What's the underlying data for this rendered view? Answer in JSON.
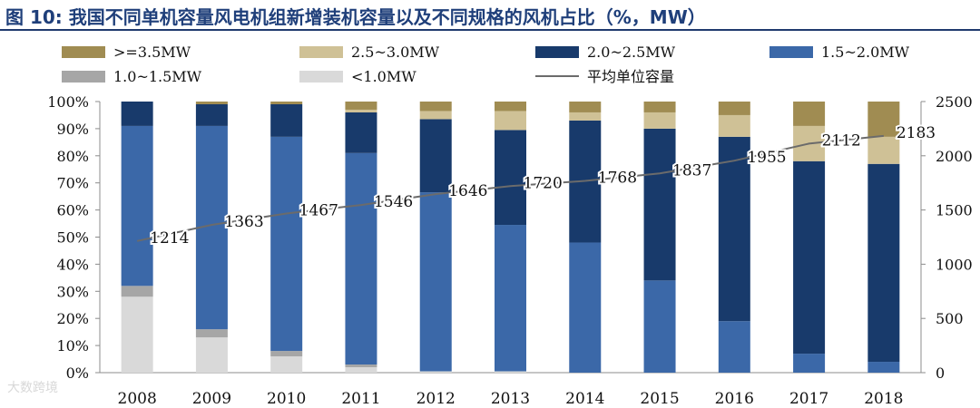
{
  "header": {
    "title": "图 10: 我国不同单机容量风电机组新增装机容量以及不同规格的风机占比（%，MW）"
  },
  "watermark": "大数跨境",
  "chart_data": {
    "type": "bar",
    "stacked": true,
    "categories": [
      "2008",
      "2009",
      "2010",
      "2011",
      "2012",
      "2013",
      "2014",
      "2015",
      "2016",
      "2017",
      "2018"
    ],
    "y_left": {
      "range": [
        0,
        100
      ],
      "tick_labels": [
        "0%",
        "10%",
        "20%",
        "30%",
        "40%",
        "50%",
        "60%",
        "70%",
        "80%",
        "90%",
        "100%"
      ]
    },
    "y_right": {
      "range": [
        0,
        2500
      ],
      "tick_labels": [
        "0",
        "500",
        "1000",
        "1500",
        "2000",
        "2500"
      ]
    },
    "legend_position": "top",
    "series": [
      {
        "name": "<1.0MW",
        "color": "#d9d9d9",
        "values": [
          28,
          13,
          6,
          2,
          0.5,
          0.5,
          0,
          0,
          0,
          0,
          0
        ]
      },
      {
        "name": "1.0~1.5MW",
        "color": "#a6a6a6",
        "values": [
          4,
          3,
          2,
          1,
          0,
          0,
          0,
          0,
          0,
          0,
          0
        ]
      },
      {
        "name": "1.5~2.0MW",
        "color": "#3b68a8",
        "values": [
          59,
          75,
          79,
          78,
          66,
          54,
          48,
          34,
          19,
          7,
          4
        ]
      },
      {
        "name": "2.0~2.5MW",
        "color": "#183a6b",
        "values": [
          9,
          8,
          12,
          15,
          27,
          35,
          45,
          56,
          68,
          71,
          73
        ]
      },
      {
        "name": "2.5~3.0MW",
        "color": "#cfc196",
        "values": [
          0,
          0,
          0,
          1,
          3,
          7,
          3,
          6,
          8,
          13,
          10
        ]
      },
      {
        "name": ">=3.5MW",
        "color": "#a08c52",
        "values": [
          0,
          1,
          1,
          3,
          3.5,
          3.5,
          4,
          4,
          5,
          9,
          13
        ]
      }
    ],
    "line": {
      "name": "平均单位容量",
      "axis": "right",
      "color": "#6b6b6b",
      "values": [
        1214,
        1363,
        1467,
        1546,
        1646,
        1720,
        1768,
        1837,
        1955,
        2112,
        2183
      ],
      "labels": [
        "1214",
        "1363",
        "1467",
        "1546",
        "1646",
        "1720",
        "1768",
        "1837",
        "1955",
        "2112",
        "2183"
      ]
    },
    "legend_order": [
      ">=3.5MW",
      "2.5~3.0MW",
      "2.0~2.5MW",
      "1.5~2.0MW",
      "1.0~1.5MW",
      "<1.0MW",
      "平均单位容量"
    ]
  }
}
